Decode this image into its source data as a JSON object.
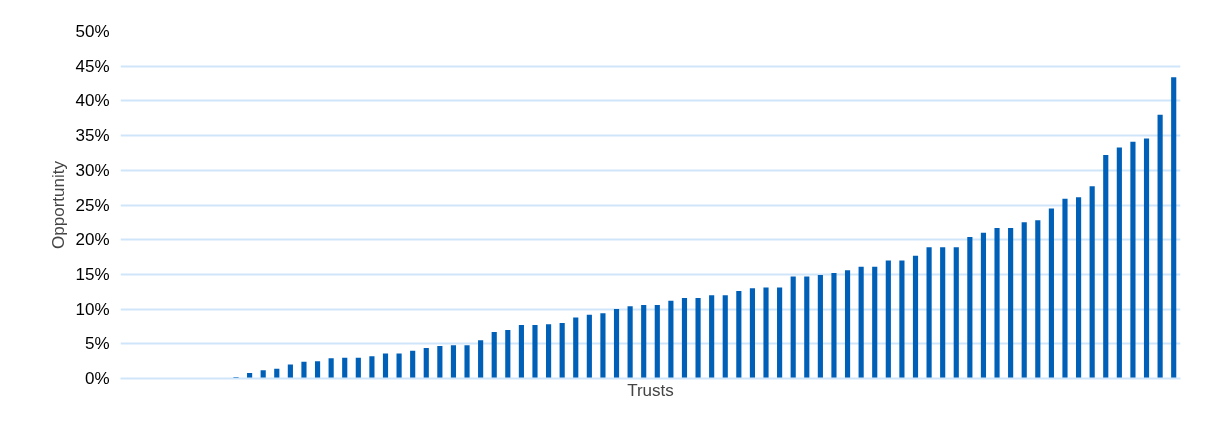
{
  "chart_data": {
    "type": "bar",
    "xlabel": "Trusts",
    "ylabel": "Opportunity",
    "categories": [
      null,
      null,
      null,
      null,
      null,
      null,
      null,
      null,
      null,
      null,
      null,
      null,
      null,
      null,
      null,
      null,
      null,
      null,
      null,
      null,
      null,
      null,
      null,
      null,
      null,
      null,
      null,
      null,
      null,
      null,
      null,
      null,
      null,
      null,
      null,
      null,
      null,
      null,
      null,
      null,
      null,
      null,
      null,
      null,
      null,
      null,
      null,
      null,
      null,
      null,
      null,
      null,
      null,
      null,
      null,
      null,
      null,
      null,
      null,
      null,
      null,
      null,
      null,
      null,
      null,
      null,
      null,
      null,
      null,
      null,
      null,
      null,
      null,
      null,
      null,
      null,
      null,
      null
    ],
    "values": [
      0,
      0,
      0,
      0,
      0,
      0,
      0,
      0,
      0.2,
      0.8,
      1.2,
      1.4,
      2.0,
      2.4,
      2.5,
      2.9,
      3.0,
      3.0,
      3.2,
      3.6,
      3.6,
      4.0,
      4.4,
      4.7,
      4.8,
      4.8,
      5.5,
      6.7,
      7.0,
      7.7,
      7.7,
      7.8,
      8.0,
      8.8,
      9.2,
      9.4,
      10.0,
      10.4,
      10.6,
      10.6,
      11.2,
      11.6,
      11.6,
      12.0,
      12.0,
      12.6,
      13.0,
      13.1,
      13.1,
      14.7,
      14.7,
      14.9,
      15.2,
      15.6,
      16.1,
      16.1,
      17.0,
      17.0,
      17.7,
      18.9,
      18.9,
      18.9,
      20.4,
      21.0,
      21.7,
      21.7,
      22.5,
      22.8,
      24.5,
      25.9,
      26.1,
      27.7,
      32.2,
      33.3,
      34.1,
      34.6,
      38.0,
      43.4
    ],
    "color": "#0060b8",
    "ylim": [
      0,
      50
    ],
    "yticks": [
      {
        "value": 0,
        "label": "0%"
      },
      {
        "value": 5,
        "label": "5%"
      },
      {
        "value": 10,
        "label": "10%"
      },
      {
        "value": 15,
        "label": "15%"
      },
      {
        "value": 20,
        "label": "20%"
      },
      {
        "value": 25,
        "label": "25%"
      },
      {
        "value": 30,
        "label": "30%"
      },
      {
        "value": 35,
        "label": "35%"
      },
      {
        "value": 40,
        "label": "40%"
      },
      {
        "value": 45,
        "label": "45%"
      },
      {
        "value": 50,
        "label": "50%"
      }
    ],
    "grid": "y"
  }
}
